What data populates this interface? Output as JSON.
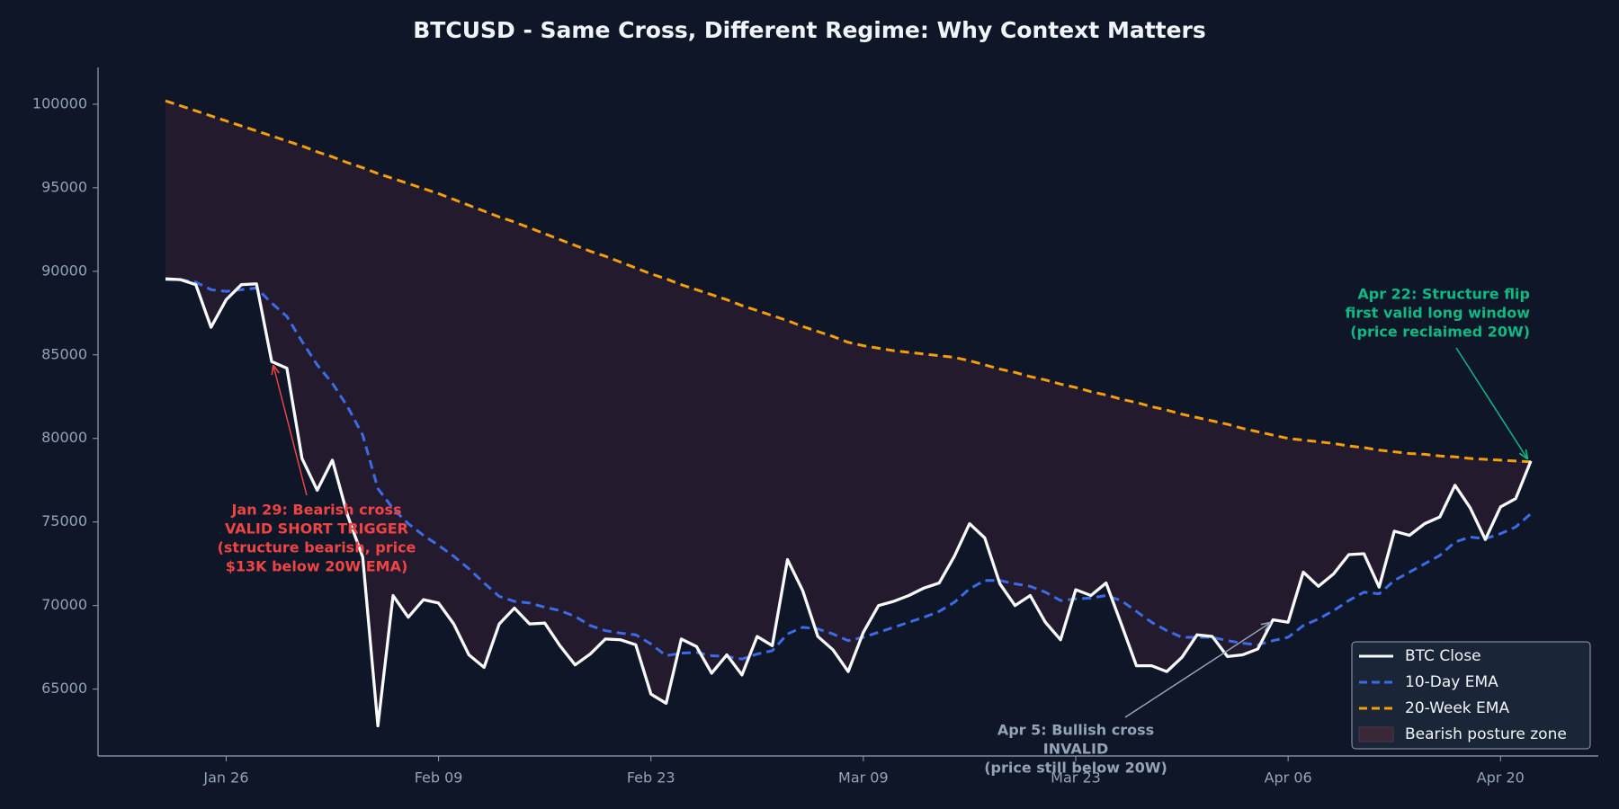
{
  "chart_data": {
    "type": "line",
    "title": "BTCUSD - Same Cross, Different Regime: Why Context Matters",
    "categories": [
      null,
      null,
      null,
      null,
      "Jan 26",
      null,
      null,
      null,
      null,
      null,
      null,
      null,
      null,
      null,
      null,
      null,
      null,
      null,
      "Feb 09",
      null,
      null,
      null,
      null,
      null,
      null,
      null,
      null,
      null,
      null,
      null,
      null,
      null,
      "Feb 23",
      null,
      null,
      null,
      null,
      null,
      null,
      null,
      null,
      null,
      null,
      null,
      null,
      null,
      "Mar 09",
      null,
      null,
      null,
      null,
      null,
      null,
      null,
      null,
      null,
      null,
      null,
      null,
      null,
      "Mar 23",
      null,
      null,
      null,
      null,
      null,
      null,
      null,
      null,
      null,
      null,
      null,
      null,
      null,
      "Apr 06",
      null,
      null,
      null,
      null,
      null,
      null,
      null,
      null,
      null,
      null,
      null,
      null,
      null,
      "Apr 20",
      null,
      null
    ],
    "ylim": [
      61000,
      102200
    ],
    "yticks": [
      65000,
      70000,
      75000,
      80000,
      85000,
      90000,
      95000,
      100000
    ],
    "legend": "lower right",
    "series": [
      {
        "name": "BTC Close",
        "color": "#f8fafc",
        "linestyle": "solid",
        "values": [
          89550,
          89500,
          89200,
          86650,
          88300,
          89200,
          89250,
          84600,
          84200,
          78800,
          76900,
          78700,
          75400,
          72900,
          62800,
          70600,
          69300,
          70350,
          70150,
          68900,
          67050,
          66300,
          68900,
          69850,
          68900,
          68950,
          67600,
          66450,
          67100,
          68000,
          67950,
          67650,
          64700,
          64150,
          68000,
          67550,
          65950,
          67050,
          65850,
          68150,
          67600,
          72750,
          70900,
          68150,
          67350,
          66050,
          68400,
          70000,
          70250,
          70600,
          71050,
          71350,
          72950,
          74900,
          74050,
          71300,
          70000,
          70600,
          69000,
          67950,
          70950,
          70600,
          71350,
          68900,
          66400,
          66400,
          66050,
          66900,
          68250,
          68150,
          66950,
          67050,
          67400,
          69150,
          69000,
          72000,
          71150,
          71900,
          73050,
          73100,
          71100,
          74450,
          74200,
          74900,
          75300,
          77200,
          75850,
          73950,
          75900,
          76400,
          78650
        ]
      },
      {
        "name": "10-Day EMA",
        "color": "#3b6be6",
        "linestyle": "dashed",
        "values": [
          89500,
          89500,
          89350,
          88900,
          88800,
          88900,
          89000,
          88100,
          87300,
          85800,
          84400,
          83300,
          81900,
          80200,
          77000,
          75800,
          74900,
          74200,
          73600,
          72950,
          72200,
          71350,
          70550,
          70250,
          70150,
          69900,
          69700,
          69350,
          68800,
          68500,
          68350,
          68250,
          67700,
          67000,
          67150,
          67200,
          67000,
          66950,
          66800,
          67100,
          67300,
          68300,
          68700,
          68600,
          68300,
          67900,
          68100,
          68400,
          68700,
          69000,
          69300,
          69650,
          70200,
          71000,
          71500,
          71500,
          71300,
          71150,
          70800,
          70300,
          70400,
          70450,
          70600,
          70300,
          69650,
          69000,
          68500,
          68100,
          68100,
          68100,
          67900,
          67750,
          67650,
          67900,
          68100,
          68800,
          69200,
          69700,
          70300,
          70800,
          70700,
          71500,
          72000,
          72500,
          73000,
          73800,
          74100,
          74000,
          74300,
          74700,
          75500
        ]
      },
      {
        "name": "20-Week EMA",
        "color": "#f59e0b",
        "linestyle": "dashed",
        "values": [
          100200,
          99900,
          99600,
          99300,
          99000,
          98700,
          98400,
          98100,
          97800,
          97500,
          97150,
          96850,
          96500,
          96200,
          95850,
          95550,
          95250,
          94950,
          94650,
          94300,
          93950,
          93600,
          93250,
          92950,
          92600,
          92250,
          91900,
          91550,
          91200,
          90900,
          90550,
          90200,
          89850,
          89550,
          89200,
          88900,
          88600,
          88300,
          87950,
          87650,
          87350,
          87050,
          86700,
          86400,
          86100,
          85750,
          85550,
          85400,
          85250,
          85150,
          85050,
          84950,
          84850,
          84650,
          84400,
          84150,
          83950,
          83700,
          83500,
          83250,
          83050,
          82800,
          82600,
          82350,
          82150,
          81900,
          81700,
          81450,
          81250,
          81050,
          80850,
          80600,
          80400,
          80200,
          80000,
          79900,
          79800,
          79700,
          79550,
          79450,
          79300,
          79200,
          79100,
          79050,
          78950,
          78900,
          78800,
          78750,
          78700,
          78650,
          78600
        ]
      }
    ],
    "zone": {
      "name": "Bearish posture zone",
      "color": "#241a2e",
      "between": [
        "BTC Close",
        "20-Week EMA"
      ]
    },
    "annotations": [
      {
        "lines": [
          "Jan 29: Bearish cross",
          "VALID SHORT TRIGGER",
          "(structure bearish, price",
          "$13K below 20W EMA)"
        ],
        "color": "#ef4444"
      },
      {
        "lines": [
          "Apr 5: Bullish cross",
          "INVALID",
          "(price still below 20W)"
        ],
        "color": "#94a3b8"
      },
      {
        "lines": [
          "Apr 22: Structure flip",
          "first valid long window",
          "(price reclaimed 20W)"
        ],
        "color": "#10b981"
      }
    ]
  }
}
